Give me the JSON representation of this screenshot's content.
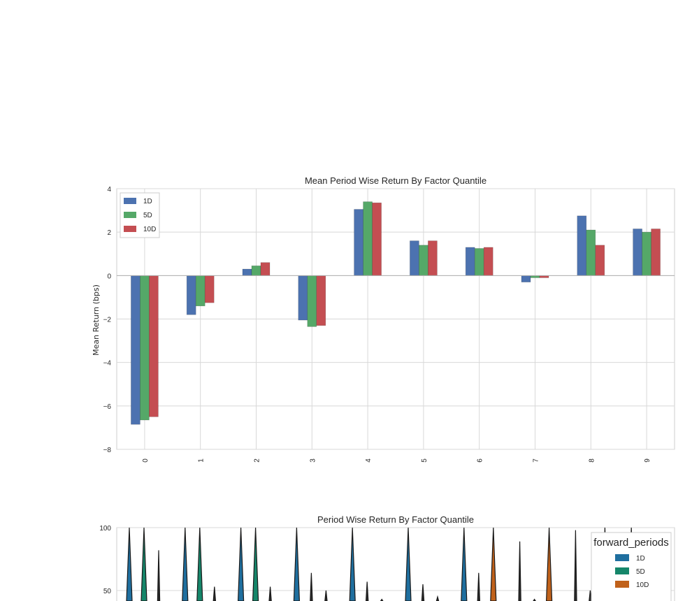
{
  "colors": {
    "c1D": "#4c72b0",
    "c5D": "#55a868",
    "c10D": "#c44e52",
    "v1D": "#1f6f9f",
    "v5D": "#15866a",
    "v10D": "#c0611a",
    "grid": "#d8d8d8",
    "frame": "#cfcfcf"
  },
  "chart_data": [
    {
      "type": "bar",
      "title": "Mean Period Wise Return By Factor Quantile",
      "ylabel": "Mean Return (bps)",
      "xlabel": "",
      "ylim": [
        -8,
        4
      ],
      "yticks": [
        "4",
        "2",
        "0",
        "−2",
        "−4",
        "−6",
        "−8"
      ],
      "ytick_values": [
        4,
        2,
        0,
        -2,
        -4,
        -6,
        -8
      ],
      "categories": [
        "0",
        "1",
        "2",
        "3",
        "4",
        "5",
        "6",
        "7",
        "8",
        "9"
      ],
      "legend_placement": "top-left",
      "grid": true,
      "series": [
        {
          "name": "1D",
          "values": [
            -6.85,
            -1.8,
            0.3,
            -2.05,
            3.05,
            1.6,
            1.3,
            -0.3,
            2.75,
            2.15
          ]
        },
        {
          "name": "5D",
          "values": [
            -6.65,
            -1.4,
            0.45,
            -2.35,
            3.4,
            1.4,
            1.25,
            -0.1,
            2.1,
            2.0
          ]
        },
        {
          "name": "10D",
          "values": [
            -6.5,
            -1.25,
            0.6,
            -2.3,
            3.35,
            1.6,
            1.3,
            -0.1,
            1.4,
            2.15
          ]
        }
      ]
    },
    {
      "type": "violin",
      "title": "Period Wise Return By Factor Quantile",
      "ylim_visible": [
        50,
        100
      ],
      "yticks": [
        "100",
        "50"
      ],
      "ytick_values": [
        100,
        50
      ],
      "legend_title": "forward_periods",
      "legend_placement": "top-right",
      "legend": [
        "1D",
        "5D",
        "10D"
      ],
      "spike_tops": [
        100,
        100,
        82,
        100,
        100,
        53,
        100,
        100,
        53,
        100,
        64,
        50,
        100,
        57,
        43,
        100,
        55,
        45,
        100,
        64,
        100,
        89,
        43,
        100,
        98,
        50,
        100,
        100,
        47
      ]
    }
  ]
}
